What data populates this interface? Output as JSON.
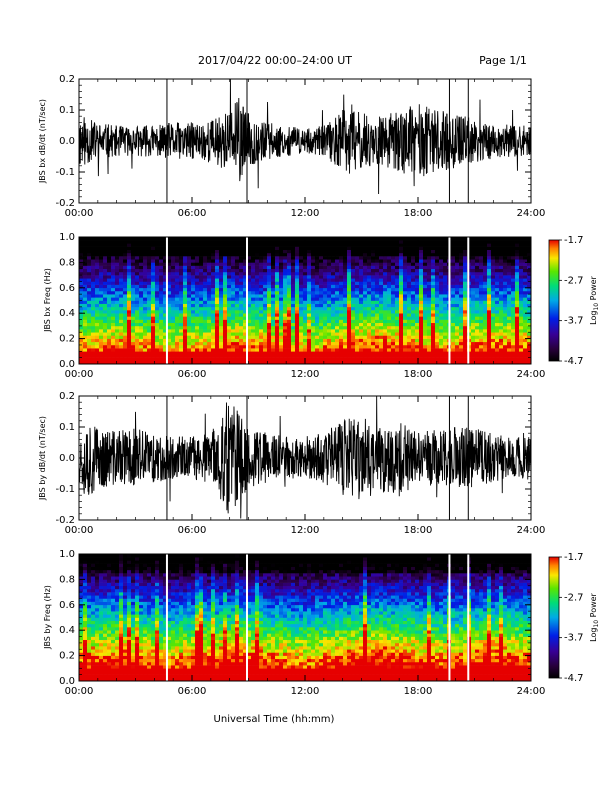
{
  "header": {
    "date_range": "2017/04/22  00:00–24:00 UT",
    "page": "Page 1/1"
  },
  "footer": {
    "xlabel": "Universal Time (hh:mm)"
  },
  "x_ticks": [
    "00:00",
    "06:00",
    "12:00",
    "18:00",
    "24:00"
  ],
  "colorbar": {
    "label_main": "Log",
    "label_sub": "10",
    "label_tail": " Power",
    "ticks": [
      "-1.7",
      "-2.7",
      "-3.7",
      "-4.7"
    ],
    "range": [
      -4.7,
      -1.7
    ]
  },
  "gaps_hours": [
    4.67,
    8.92,
    19.67,
    20.67
  ],
  "chart_data": [
    {
      "type": "line",
      "ylabel": "JBS bx dB/dt (nT/sec)",
      "x_unit": "hours UT",
      "xlim": [
        0,
        24
      ],
      "ylim": [
        -0.2,
        0.2
      ],
      "y_ticks": [
        "0.2",
        "0.1",
        "0.0",
        "-0.1",
        "-0.2"
      ],
      "y_tick_values": [
        0.2,
        0.1,
        0.0,
        -0.1,
        -0.2
      ],
      "envelope": {
        "x": [
          0,
          1,
          2,
          3,
          4,
          5,
          6,
          7,
          8,
          8.5,
          9,
          10,
          11,
          12,
          13,
          14,
          14.5,
          15,
          16,
          17,
          18,
          19,
          20,
          21,
          22,
          23,
          24
        ],
        "amplitude": [
          0.09,
          0.06,
          0.05,
          0.05,
          0.05,
          0.06,
          0.06,
          0.07,
          0.1,
          0.14,
          0.09,
          0.06,
          0.05,
          0.04,
          0.05,
          0.1,
          0.12,
          0.09,
          0.08,
          0.1,
          0.12,
          0.1,
          0.09,
          0.07,
          0.06,
          0.05,
          0.05
        ]
      },
      "grid": false
    },
    {
      "type": "heatmap",
      "ylabel": "JBS bx Freq (Hz)",
      "x_unit": "hours UT",
      "xlim": [
        0,
        24
      ],
      "ylim": [
        0,
        1
      ],
      "y_ticks": [
        "1.0",
        "0.8",
        "0.6",
        "0.4",
        "0.2",
        "0.0"
      ],
      "y_tick_values": [
        1.0,
        0.8,
        0.6,
        0.4,
        0.2,
        0.0
      ],
      "color_scale": "Log10 Power",
      "zlim": [
        -4.7,
        -1.7
      ]
    },
    {
      "type": "line",
      "ylabel": "JBS by dB/dt (nT/sec)",
      "x_unit": "hours UT",
      "xlim": [
        0,
        24
      ],
      "ylim": [
        -0.2,
        0.2
      ],
      "y_ticks": [
        "0.2",
        "0.1",
        "0.0",
        "-0.1",
        "-0.2"
      ],
      "y_tick_values": [
        0.2,
        0.1,
        0.0,
        -0.1,
        -0.2
      ],
      "envelope": {
        "x": [
          0,
          0.5,
          1,
          2,
          3,
          4,
          5,
          6,
          7,
          7.5,
          8,
          8.5,
          9,
          10,
          11,
          12,
          13,
          14,
          15,
          16,
          17,
          18,
          19,
          20,
          21,
          22,
          23,
          24
        ],
        "amplitude": [
          0.08,
          0.15,
          0.1,
          0.09,
          0.1,
          0.08,
          0.07,
          0.07,
          0.08,
          0.14,
          0.2,
          0.15,
          0.1,
          0.08,
          0.07,
          0.06,
          0.09,
          0.12,
          0.14,
          0.11,
          0.12,
          0.1,
          0.09,
          0.1,
          0.1,
          0.08,
          0.07,
          0.07
        ]
      },
      "grid": false
    },
    {
      "type": "heatmap",
      "ylabel": "JBS by Freq (Hz)",
      "x_unit": "hours UT",
      "xlim": [
        0,
        24
      ],
      "ylim": [
        0,
        1
      ],
      "y_ticks": [
        "1.0",
        "0.8",
        "0.6",
        "0.4",
        "0.2",
        "0.0"
      ],
      "y_tick_values": [
        1.0,
        0.8,
        0.6,
        0.4,
        0.2,
        0.0
      ],
      "color_scale": "Log10 Power",
      "zlim": [
        -4.7,
        -1.7
      ]
    }
  ]
}
